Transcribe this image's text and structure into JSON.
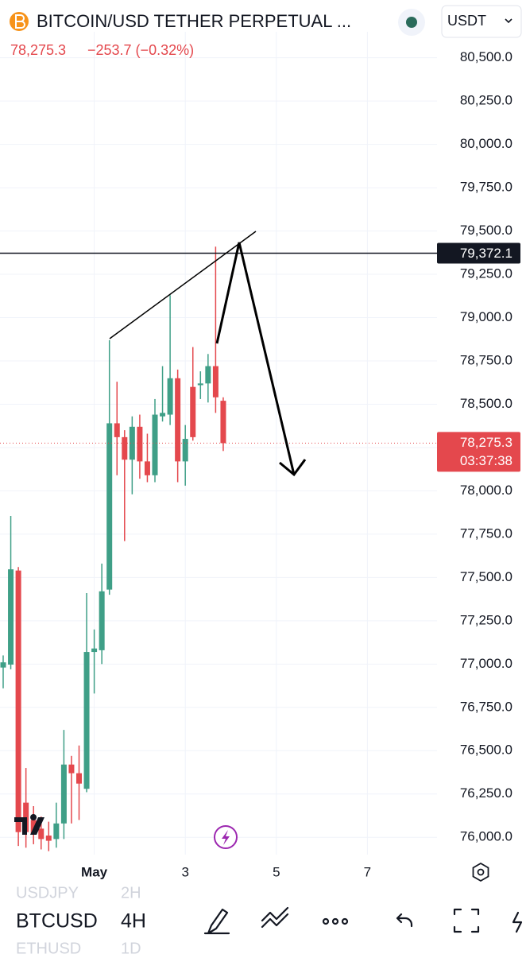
{
  "header": {
    "title": "BITCOIN/USD TETHER PERPETUAL ...",
    "currency": "USDT",
    "change": "−253.7 (−0.32%)"
  },
  "chart_data": {
    "type": "candlestick",
    "categories": [
      null,
      null,
      null,
      null,
      null,
      null,
      null,
      null,
      null,
      null,
      null,
      null,
      "May",
      null,
      null,
      null,
      null,
      null,
      null,
      null,
      null,
      null,
      null,
      null,
      "3",
      null,
      null,
      null,
      null,
      null,
      null,
      null,
      null,
      null,
      null,
      null,
      "5",
      null,
      null,
      null,
      null,
      null,
      null,
      null,
      null,
      null,
      null,
      null,
      "7",
      null,
      null,
      null,
      null,
      null,
      null,
      null,
      null
    ],
    "open": [
      76980,
      76997,
      77540,
      76200,
      76100,
      76050,
      76010,
      75990,
      76080,
      76420,
      76370,
      76280,
      77070,
      77080,
      77430,
      78390,
      78310,
      78180,
      78370,
      78170,
      78090,
      78430,
      78440,
      78650,
      78170,
      78600,
      78610,
      78620,
      78720,
      78520,
      null,
      null,
      null,
      null,
      null,
      null,
      null,
      null,
      null,
      null,
      null,
      null,
      null,
      null,
      null,
      null,
      null,
      null,
      null,
      null,
      null,
      null,
      null,
      null,
      null,
      null,
      null
    ],
    "high": [
      77050,
      77855,
      77560,
      76400,
      76180,
      76120,
      76090,
      76200,
      76620,
      76470,
      76530,
      77410,
      77200,
      77580,
      78870,
      78630,
      78350,
      78430,
      78440,
      78330,
      78530,
      78720,
      79130,
      78700,
      78380,
      78830,
      78690,
      78790,
      79410,
      78540,
      null,
      null,
      null,
      null,
      null,
      null,
      null,
      null,
      null,
      null,
      null,
      null,
      null,
      null,
      null,
      null,
      null,
      null,
      null,
      null,
      null,
      null,
      null,
      null,
      null,
      null,
      null
    ],
    "low": [
      76860,
      76970,
      75950,
      75940,
      75960,
      75930,
      75920,
      75940,
      75990,
      76080,
      76100,
      76260,
      76830,
      77000,
      77400,
      78090,
      77710,
      77980,
      78070,
      78050,
      78050,
      78400,
      78380,
      78050,
      78030,
      78290,
      78530,
      78510,
      78450,
      78230,
      null,
      null,
      null,
      null,
      null,
      null,
      null,
      null,
      null,
      null,
      null,
      null,
      null,
      null,
      null,
      null,
      null,
      null,
      null,
      null,
      null,
      null,
      null,
      null,
      null,
      null,
      null
    ],
    "close": [
      77010,
      77547,
      76030,
      76030,
      76020,
      75990,
      75980,
      76080,
      76420,
      76370,
      76310,
      77070,
      77090,
      77420,
      78390,
      78310,
      78180,
      78370,
      78170,
      78090,
      78440,
      78450,
      78650,
      78170,
      78300,
      78310,
      78620,
      78720,
      78540,
      78275.3,
      null,
      null,
      null,
      null,
      null,
      null,
      null,
      null,
      null,
      null,
      null,
      null,
      null,
      null,
      null,
      null,
      null,
      null,
      null,
      null,
      null,
      null,
      null,
      null,
      null,
      null,
      null
    ],
    "up_color": "#3f9f87",
    "down_color": "#e4484d",
    "ylim": [
      75900,
      80650
    ],
    "yticks": [
      {
        "value": 76000,
        "label": "76,000.0"
      },
      {
        "value": 76250,
        "label": "76,250.0"
      },
      {
        "value": 76500,
        "label": "76,500.0"
      },
      {
        "value": 76750,
        "label": "76,750.0"
      },
      {
        "value": 77000,
        "label": "77,000.0"
      },
      {
        "value": 77250,
        "label": "77,250.0"
      },
      {
        "value": 77500,
        "label": "77,500.0"
      },
      {
        "value": 77750,
        "label": "77,750.0"
      },
      {
        "value": 78000,
        "label": "78,000.0"
      },
      {
        "value": 78250,
        "label": "78,250.0"
      },
      {
        "value": 78500,
        "label": "78,500.0"
      },
      {
        "value": 78750,
        "label": "78,750.0"
      },
      {
        "value": 79000,
        "label": "79,000.0"
      },
      {
        "value": 79250,
        "label": "79,250.0"
      },
      {
        "value": 79500,
        "label": "79,500.0"
      },
      {
        "value": 79750,
        "label": "79,750.0"
      },
      {
        "value": 80000,
        "label": "80,000.0"
      },
      {
        "value": 80250,
        "label": "80,250.0"
      },
      {
        "value": 80500,
        "label": "80,500.0"
      }
    ],
    "grid": true,
    "price_line": {
      "value": 79372.1,
      "label": "79,372.1"
    },
    "last_price": {
      "value": 78275.3,
      "label": "78,275.3",
      "countdown": "03:37:38"
    }
  },
  "toolbar": {
    "symbols": [
      {
        "symbol": "USDJPY",
        "interval": "2H"
      },
      {
        "symbol": "BTCUSD",
        "interval": "4H"
      },
      {
        "symbol": "ETHUSD",
        "interval": "1D"
      }
    ]
  }
}
